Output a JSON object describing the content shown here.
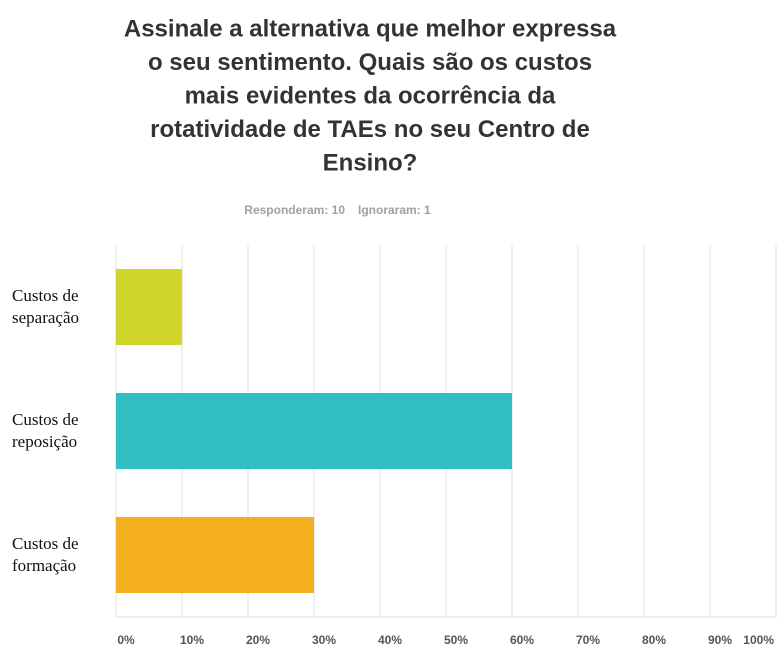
{
  "chart_data": {
    "type": "bar",
    "orientation": "horizontal",
    "title": [
      "Assinale a alternativa que melhor expressa",
      "o seu sentimento. Quais são os custos",
      "mais evidentes da ocorrência da",
      "rotatividade de TAEs no seu Centro de",
      "Ensino?"
    ],
    "subtitle": [
      "Responderam: 10",
      "Ignoraram: 1"
    ],
    "categories": [
      "Custos de separação",
      "Custos de reposição",
      "Custos de formação"
    ],
    "values": [
      10,
      60,
      30
    ],
    "colors": [
      "#d0d52a",
      "#31bfc1",
      "#f6ae21"
    ],
    "xlim": [
      0,
      100
    ],
    "xticks": [
      {
        "value": 0,
        "label": "0%"
      },
      {
        "value": 10,
        "label": "10%"
      },
      {
        "value": 20,
        "label": "20%"
      },
      {
        "value": 30,
        "label": "30%"
      },
      {
        "value": 40,
        "label": "40%"
      },
      {
        "value": 50,
        "label": "50%"
      },
      {
        "value": 60,
        "label": "60%"
      },
      {
        "value": 70,
        "label": "70%"
      },
      {
        "value": 80,
        "label": "80%"
      },
      {
        "value": 90,
        "label": "90%"
      },
      {
        "value": 100,
        "label": "100%"
      }
    ],
    "grid": true
  }
}
